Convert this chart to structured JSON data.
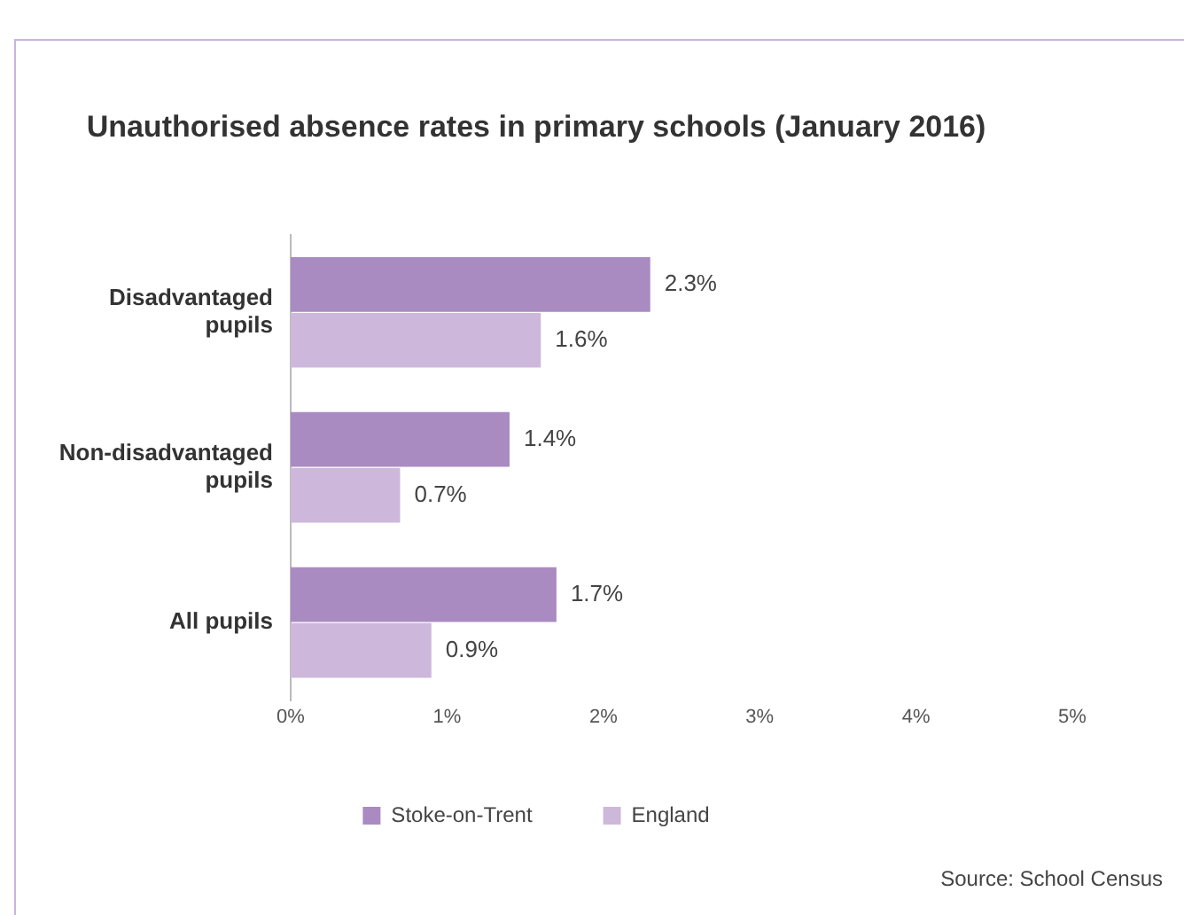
{
  "chart_data": {
    "type": "bar",
    "orientation": "horizontal",
    "title": "Unauthorised absence rates in primary schools (January 2016)",
    "categories": [
      "Disadvantaged pupils",
      "Non-disadvantaged pupils",
      "All pupils"
    ],
    "series": [
      {
        "name": "Stoke-on-Trent",
        "color": "#a98bc1",
        "values": [
          2.3,
          1.4,
          1.7
        ],
        "value_labels": [
          "2.3%",
          "1.4%",
          "1.7%"
        ]
      },
      {
        "name": "England",
        "color": "#cdb8dc",
        "values": [
          1.6,
          0.7,
          0.9
        ],
        "value_labels": [
          "1.6%",
          "0.7%",
          "0.9%"
        ]
      }
    ],
    "xlim": [
      0,
      5
    ],
    "xticks": [
      {
        "value": 0,
        "label": "0%"
      },
      {
        "value": 1,
        "label": "1%"
      },
      {
        "value": 2,
        "label": "2%"
      },
      {
        "value": 3,
        "label": "3%"
      },
      {
        "value": 4,
        "label": "4%"
      },
      {
        "value": 5,
        "label": "5%"
      }
    ],
    "grid": false,
    "legend": "bottom",
    "annotations": [
      "Source: School Census"
    ]
  }
}
